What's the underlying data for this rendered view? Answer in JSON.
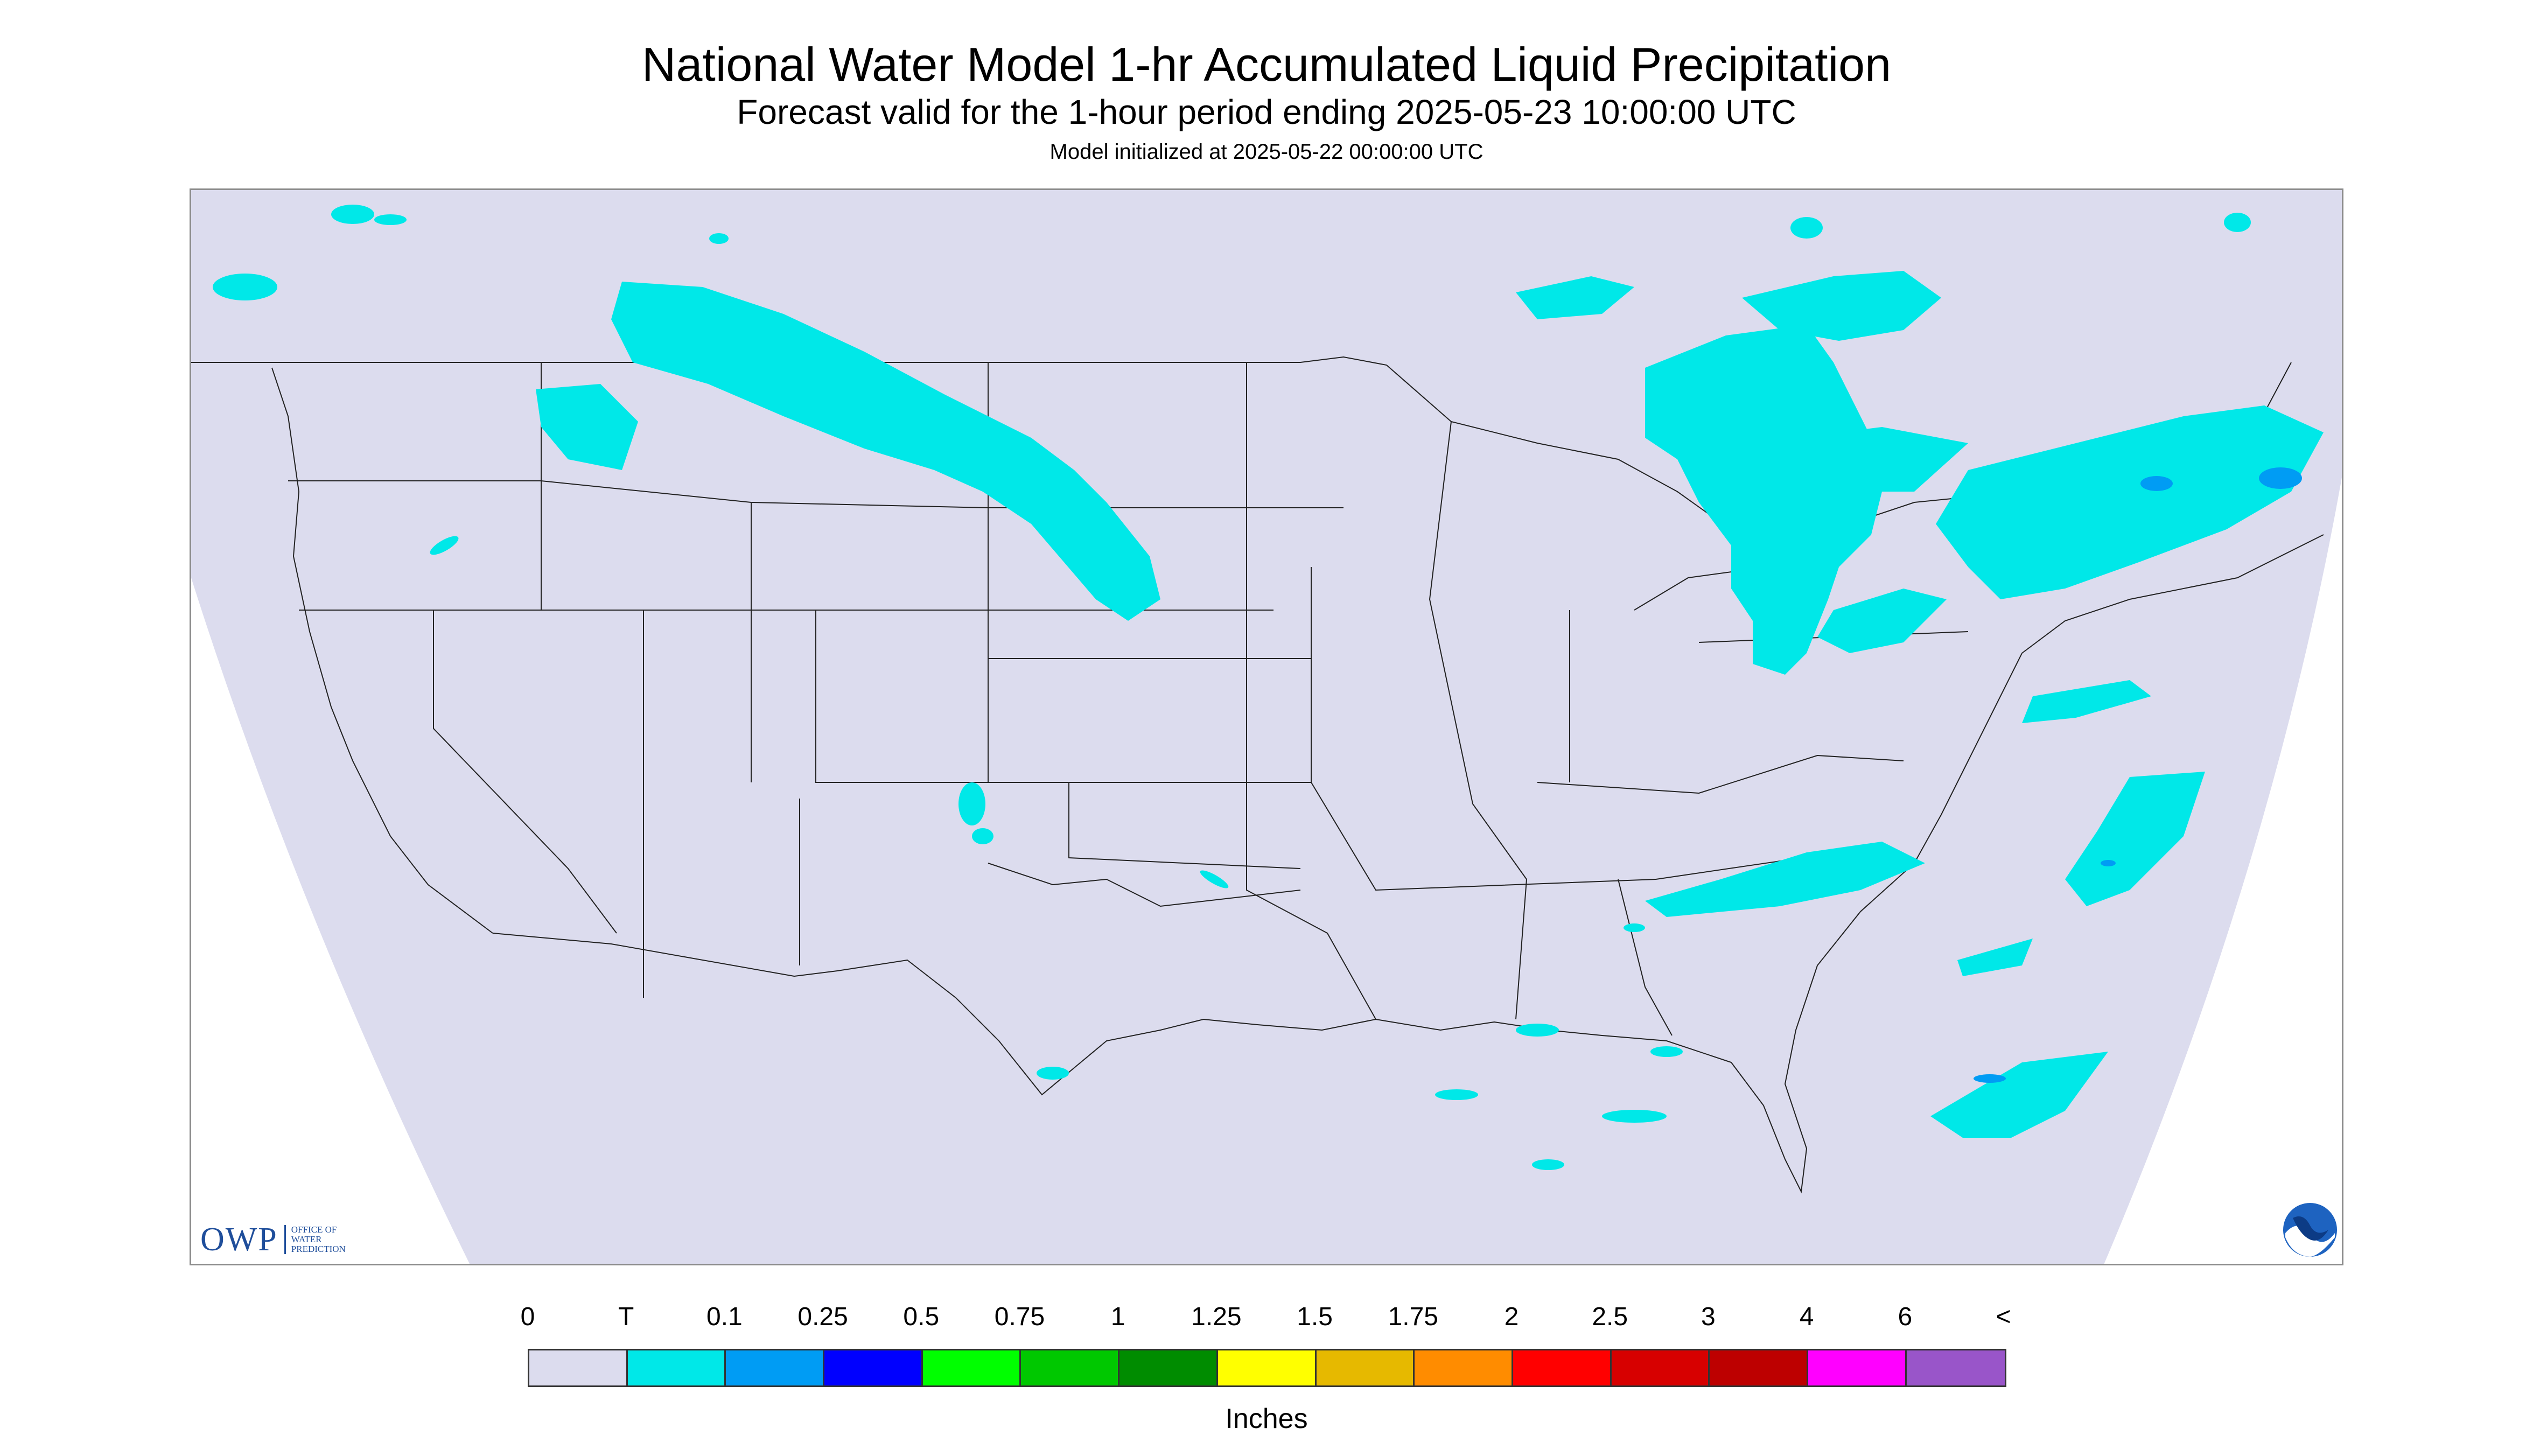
{
  "title": "National Water Model 1-hr Accumulated Liquid Precipitation",
  "subtitle": "Forecast valid for the 1-hour period ending 2025-05-23 10:00:00 UTC",
  "initialized": "Model initialized at 2025-05-22 00:00:00 UTC",
  "logos": {
    "owp_acronym": "OWP",
    "owp_name": "OFFICE OF WATER PREDICTION",
    "noaa_text": "NOAA"
  },
  "legend": {
    "labels": [
      "0",
      "T",
      "0.1",
      "0.25",
      "0.5",
      "0.75",
      "1",
      "1.25",
      "1.5",
      "1.75",
      "2",
      "2.5",
      "3",
      "4",
      "6",
      "<"
    ],
    "colors": [
      "#dcdcee",
      "#00e8e8",
      "#009cf4",
      "#0000ff",
      "#00ff00",
      "#00c800",
      "#008c00",
      "#ffff00",
      "#e6b900",
      "#ff8c00",
      "#ff0000",
      "#d70000",
      "#bd0000",
      "#ff00ff",
      "#9955c9"
    ],
    "units": "Inches"
  },
  "map_colors": {
    "domain_fill": "#dcdcee",
    "outside_fill": "#ffffff",
    "trace": "#00e8e8",
    "light": "#009cf4",
    "boundary": "#000000"
  }
}
